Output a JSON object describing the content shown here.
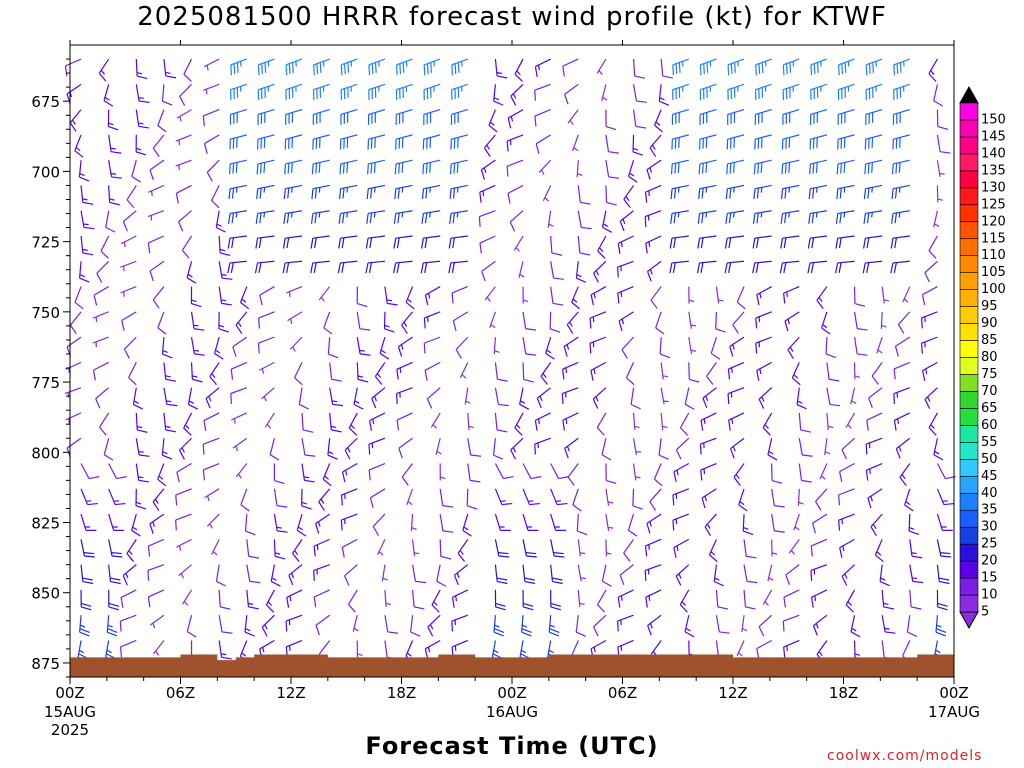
{
  "chart_data": {
    "type": "wind_barb_time_height",
    "title": "2025081500 HRRR forecast wind profile (kt) for KTWF",
    "xlabel": "Forecast Time (UTC)",
    "ylabel": "",
    "x_ticks": [
      {
        "hour": 0,
        "label": "00Z",
        "sub": [
          "15AUG",
          "2025"
        ]
      },
      {
        "hour": 6,
        "label": "06Z",
        "sub": []
      },
      {
        "hour": 12,
        "label": "12Z",
        "sub": []
      },
      {
        "hour": 18,
        "label": "18Z",
        "sub": []
      },
      {
        "hour": 24,
        "label": "00Z",
        "sub": [
          "16AUG"
        ]
      },
      {
        "hour": 30,
        "label": "06Z",
        "sub": []
      },
      {
        "hour": 36,
        "label": "12Z",
        "sub": []
      },
      {
        "hour": 42,
        "label": "18Z",
        "sub": []
      },
      {
        "hour": 48,
        "label": "00Z",
        "sub": [
          "17AUG"
        ]
      }
    ],
    "xlim": [
      0,
      48
    ],
    "y_ticks": [
      675,
      700,
      725,
      750,
      775,
      800,
      825,
      850,
      875
    ],
    "y_tick_labels": [
      "675",
      "700",
      "725",
      "750",
      "775",
      "800",
      "825",
      "850",
      "875"
    ],
    "ylim": [
      655,
      880
    ],
    "y_reversed": true,
    "colorbar": {
      "labels": [
        "5",
        "10",
        "15",
        "20",
        "25",
        "30",
        "35",
        "40",
        "45",
        "50",
        "55",
        "60",
        "65",
        "70",
        "75",
        "80",
        "85",
        "90",
        "95",
        "100",
        "105",
        "110",
        "115",
        "120",
        "125",
        "130",
        "135",
        "140",
        "145",
        "150"
      ],
      "colors": [
        "#8a2be2",
        "#7a1ee6",
        "#5a00e6",
        "#2a10d8",
        "#1840e0",
        "#1a60ff",
        "#1e80ff",
        "#28a4ff",
        "#30c8ff",
        "#20e8c8",
        "#18e8a0",
        "#22e040",
        "#2ed82e",
        "#80e020",
        "#e0ff20",
        "#ffff00",
        "#ffe000",
        "#ffcc00",
        "#ffb000",
        "#ffa000",
        "#ff8800",
        "#ff7000",
        "#ff5500",
        "#ff3300",
        "#ff1a1a",
        "#ff0040",
        "#ff1a66",
        "#ff0088",
        "#ff00b0",
        "#ff00e0"
      ]
    },
    "terrain_color": "#a0522d",
    "grid": false
  },
  "credit": "coolwx.com/models"
}
